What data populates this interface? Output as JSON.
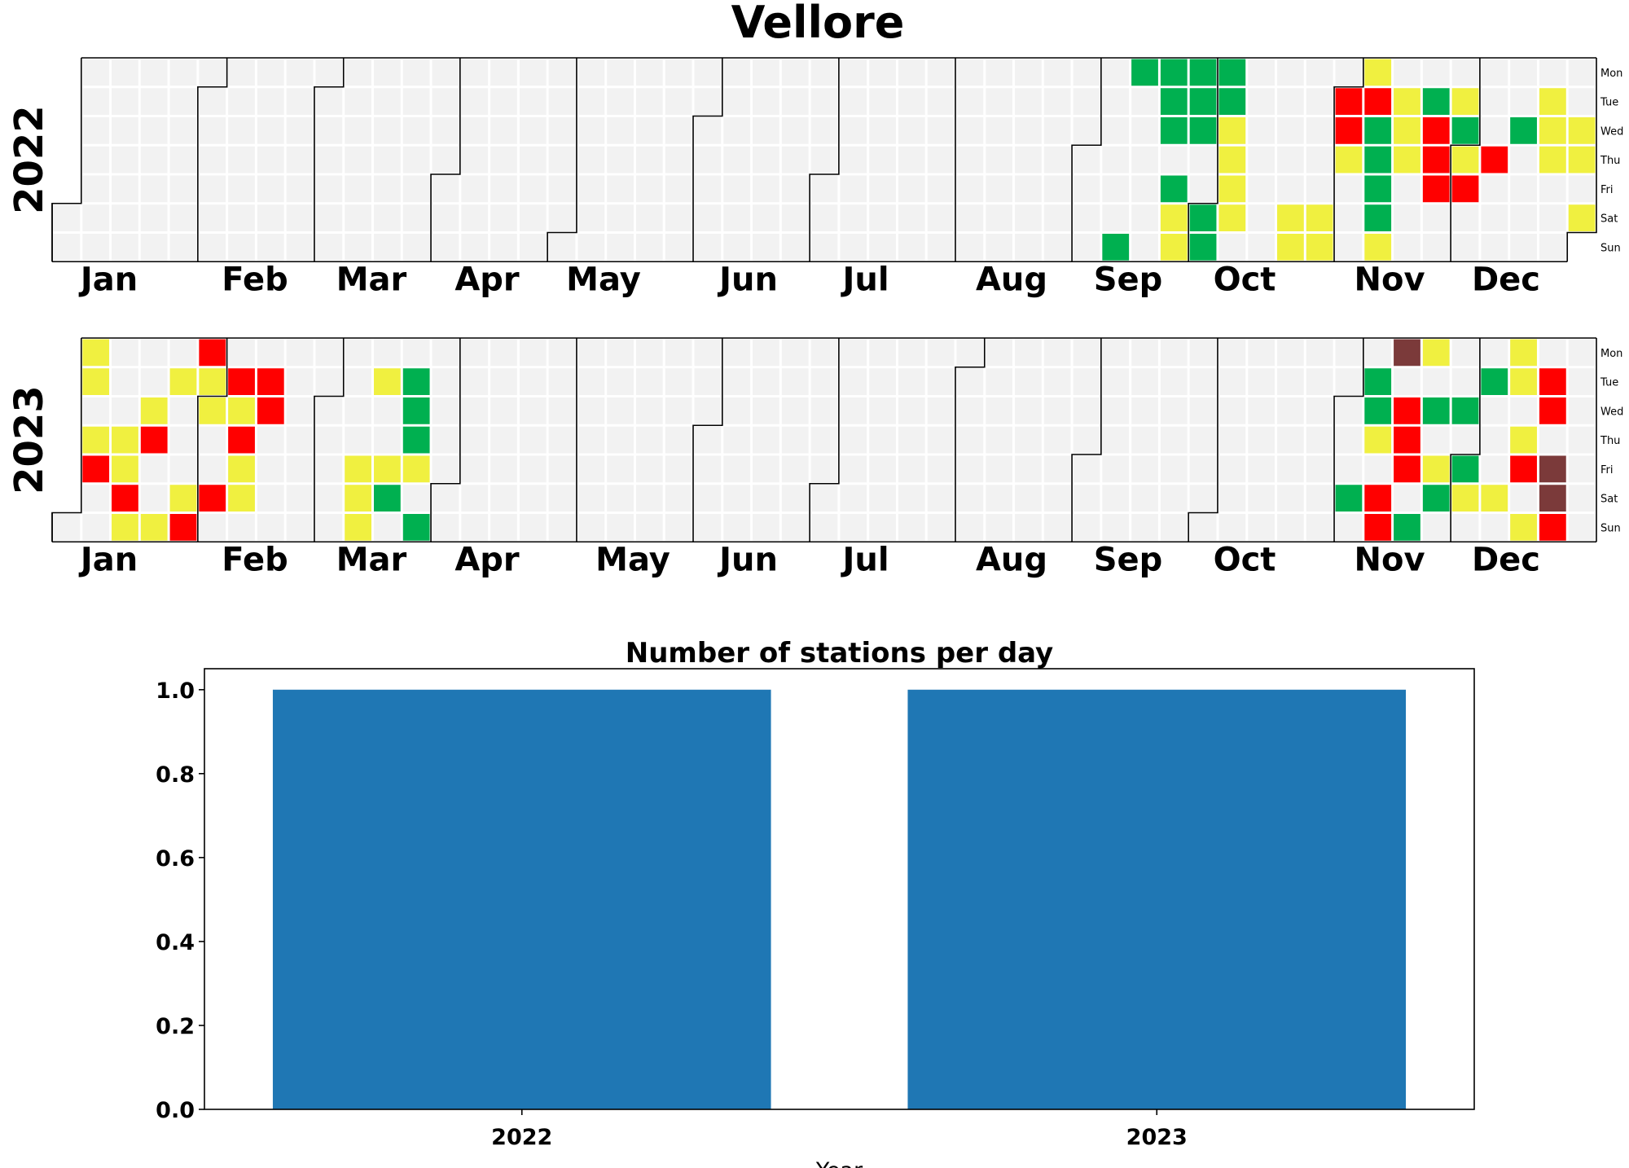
{
  "title": "Vellore",
  "colors": {
    "empty": "#f2f2f2",
    "good": "#00b050",
    "moderate": "#f0f040",
    "poor": "#ff0000",
    "very_poor": "#7b3a3a",
    "bar": "#1f77b4",
    "boundary": "#000000"
  },
  "calendar": {
    "day_labels": [
      "Mon",
      "Tue",
      "Wed",
      "Thu",
      "Fri",
      "Sat",
      "Sun"
    ],
    "years": [
      {
        "year": "2022",
        "month_labels": [
          "Jan",
          "Feb",
          "Mar",
          "Apr",
          "May",
          "Jun",
          "Jul",
          "Aug",
          "Sep",
          "Oct",
          "Nov",
          "Dec"
        ],
        "cells": [
          [
            36,
            6,
            "good"
          ],
          [
            37,
            0,
            "good"
          ],
          [
            38,
            0,
            "good"
          ],
          [
            38,
            1,
            "good"
          ],
          [
            38,
            2,
            "good"
          ],
          [
            38,
            4,
            "good"
          ],
          [
            38,
            5,
            "moderate"
          ],
          [
            38,
            6,
            "moderate"
          ],
          [
            39,
            0,
            "good"
          ],
          [
            39,
            1,
            "good"
          ],
          [
            39,
            2,
            "good"
          ],
          [
            39,
            5,
            "good"
          ],
          [
            39,
            6,
            "good"
          ],
          [
            40,
            0,
            "good"
          ],
          [
            40,
            1,
            "good"
          ],
          [
            40,
            2,
            "moderate"
          ],
          [
            40,
            3,
            "moderate"
          ],
          [
            40,
            4,
            "moderate"
          ],
          [
            40,
            5,
            "moderate"
          ],
          [
            42,
            5,
            "moderate"
          ],
          [
            42,
            6,
            "moderate"
          ],
          [
            43,
            5,
            "moderate"
          ],
          [
            43,
            6,
            "moderate"
          ],
          [
            44,
            1,
            "poor"
          ],
          [
            44,
            2,
            "poor"
          ],
          [
            44,
            3,
            "moderate"
          ],
          [
            45,
            0,
            "moderate"
          ],
          [
            45,
            1,
            "poor"
          ],
          [
            45,
            2,
            "good"
          ],
          [
            45,
            3,
            "good"
          ],
          [
            45,
            4,
            "good"
          ],
          [
            45,
            5,
            "good"
          ],
          [
            45,
            6,
            "moderate"
          ],
          [
            46,
            1,
            "moderate"
          ],
          [
            46,
            2,
            "moderate"
          ],
          [
            46,
            3,
            "moderate"
          ],
          [
            47,
            1,
            "good"
          ],
          [
            47,
            2,
            "poor"
          ],
          [
            47,
            3,
            "poor"
          ],
          [
            47,
            4,
            "poor"
          ],
          [
            48,
            1,
            "moderate"
          ],
          [
            48,
            2,
            "good"
          ],
          [
            48,
            3,
            "moderate"
          ],
          [
            48,
            4,
            "poor"
          ],
          [
            49,
            3,
            "poor"
          ],
          [
            50,
            2,
            "good"
          ],
          [
            51,
            1,
            "moderate"
          ],
          [
            51,
            2,
            "moderate"
          ],
          [
            51,
            3,
            "moderate"
          ],
          [
            52,
            2,
            "moderate"
          ],
          [
            52,
            3,
            "moderate"
          ],
          [
            52,
            5,
            "moderate"
          ]
        ]
      },
      {
        "year": "2023",
        "month_labels": [
          "Jan",
          "Feb",
          "Mar",
          "Apr",
          "May",
          "Jun",
          "Jul",
          "Aug",
          "Sep",
          "Oct",
          "Nov",
          "Dec"
        ],
        "cells": [
          [
            1,
            0,
            "moderate"
          ],
          [
            1,
            1,
            "moderate"
          ],
          [
            1,
            3,
            "moderate"
          ],
          [
            1,
            4,
            "poor"
          ],
          [
            2,
            3,
            "moderate"
          ],
          [
            2,
            4,
            "moderate"
          ],
          [
            2,
            5,
            "poor"
          ],
          [
            2,
            6,
            "moderate"
          ],
          [
            3,
            2,
            "moderate"
          ],
          [
            3,
            3,
            "poor"
          ],
          [
            3,
            6,
            "moderate"
          ],
          [
            4,
            1,
            "moderate"
          ],
          [
            4,
            5,
            "moderate"
          ],
          [
            4,
            6,
            "poor"
          ],
          [
            5,
            0,
            "poor"
          ],
          [
            5,
            1,
            "moderate"
          ],
          [
            5,
            2,
            "moderate"
          ],
          [
            5,
            5,
            "poor"
          ],
          [
            6,
            1,
            "poor"
          ],
          [
            6,
            2,
            "moderate"
          ],
          [
            6,
            3,
            "poor"
          ],
          [
            6,
            4,
            "moderate"
          ],
          [
            6,
            5,
            "moderate"
          ],
          [
            7,
            1,
            "poor"
          ],
          [
            7,
            2,
            "poor"
          ],
          [
            10,
            4,
            "moderate"
          ],
          [
            10,
            5,
            "moderate"
          ],
          [
            10,
            6,
            "moderate"
          ],
          [
            11,
            1,
            "moderate"
          ],
          [
            11,
            4,
            "moderate"
          ],
          [
            11,
            5,
            "good"
          ],
          [
            12,
            1,
            "good"
          ],
          [
            12,
            2,
            "good"
          ],
          [
            12,
            3,
            "good"
          ],
          [
            12,
            4,
            "moderate"
          ],
          [
            12,
            6,
            "good"
          ],
          [
            44,
            5,
            "good"
          ],
          [
            45,
            1,
            "good"
          ],
          [
            45,
            2,
            "good"
          ],
          [
            45,
            3,
            "moderate"
          ],
          [
            45,
            5,
            "poor"
          ],
          [
            45,
            6,
            "poor"
          ],
          [
            46,
            0,
            "very_poor"
          ],
          [
            46,
            2,
            "poor"
          ],
          [
            46,
            3,
            "poor"
          ],
          [
            46,
            4,
            "poor"
          ],
          [
            46,
            6,
            "good"
          ],
          [
            47,
            0,
            "moderate"
          ],
          [
            47,
            2,
            "good"
          ],
          [
            47,
            4,
            "moderate"
          ],
          [
            47,
            5,
            "good"
          ],
          [
            48,
            2,
            "good"
          ],
          [
            48,
            4,
            "good"
          ],
          [
            48,
            5,
            "moderate"
          ],
          [
            49,
            1,
            "good"
          ],
          [
            49,
            5,
            "moderate"
          ],
          [
            50,
            0,
            "moderate"
          ],
          [
            50,
            1,
            "moderate"
          ],
          [
            50,
            3,
            "moderate"
          ],
          [
            50,
            4,
            "poor"
          ],
          [
            50,
            6,
            "moderate"
          ],
          [
            51,
            1,
            "poor"
          ],
          [
            51,
            2,
            "poor"
          ],
          [
            51,
            4,
            "very_poor"
          ],
          [
            51,
            5,
            "very_poor"
          ],
          [
            51,
            6,
            "poor"
          ]
        ]
      }
    ]
  },
  "chart_data": {
    "type": "bar",
    "title": "Number of stations per day",
    "categories": [
      "2022",
      "2023"
    ],
    "values": [
      1.0,
      1.0
    ],
    "xlabel": "Year",
    "ylabel": "",
    "ylim": [
      0,
      1.05
    ],
    "yticks": [
      "0.0",
      "0.2",
      "0.4",
      "0.6",
      "0.8",
      "1.0"
    ]
  }
}
